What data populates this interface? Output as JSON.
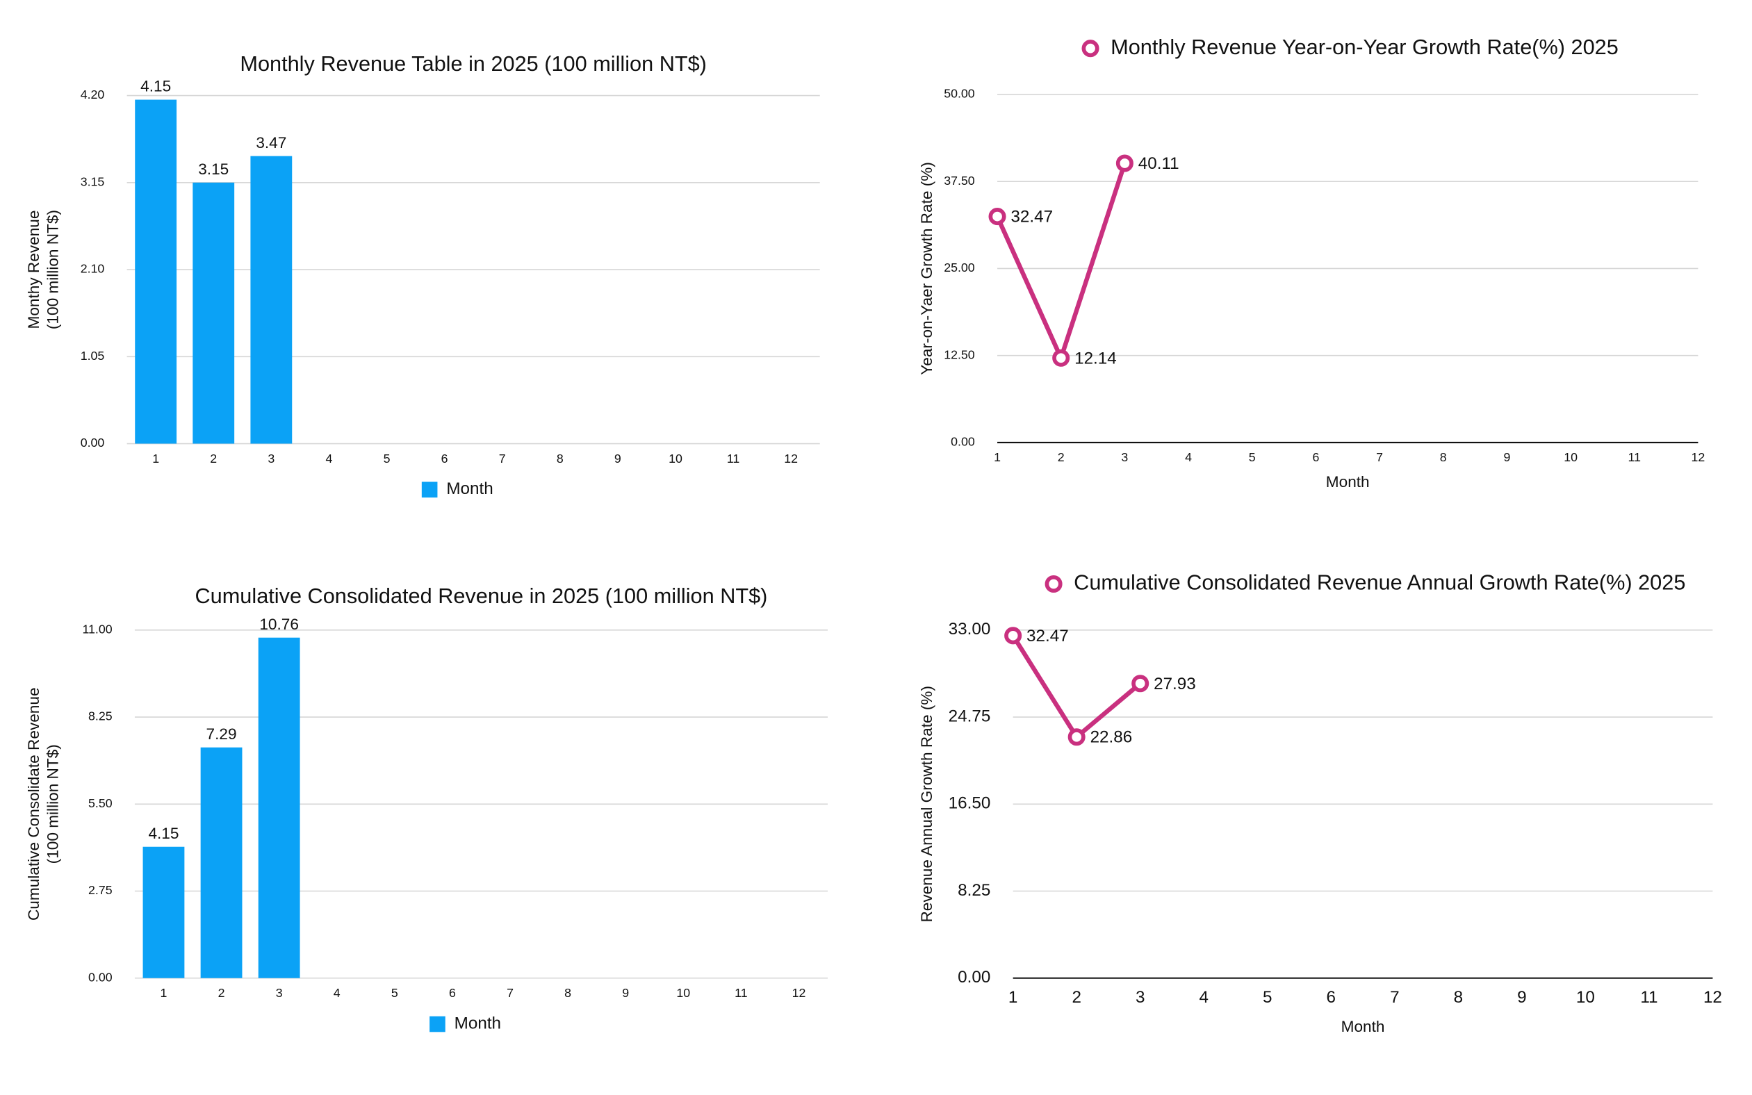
{
  "chart_data": [
    {
      "type": "bar",
      "title": "Monthly Revenue Table in 2025 (100 million NT$)",
      "ylabel": [
        "Monthy Revenue",
        "(100 million NT$)"
      ],
      "categories": [
        1,
        2,
        3,
        4,
        5,
        6,
        7,
        8,
        9,
        10,
        11,
        12
      ],
      "series": [
        {
          "name": "Month",
          "color": "#0ba2f6",
          "values": [
            4.15,
            3.15,
            3.47,
            null,
            null,
            null,
            null,
            null,
            null,
            null,
            null,
            null
          ]
        }
      ],
      "ylim": [
        0,
        4.2
      ],
      "yticks": [
        {
          "value": 0,
          "label": "0.00"
        },
        {
          "value": 1.05,
          "label": "1.05"
        },
        {
          "value": 2.1,
          "label": "2.10"
        },
        {
          "value": 3.15,
          "label": "3.15"
        },
        {
          "value": 4.2,
          "label": "4.20"
        }
      ],
      "grid": true,
      "legend": "bottom"
    },
    {
      "type": "line",
      "xlabel": "Month",
      "ylabel": "Year-on-Yaer Growth Rate (%)",
      "x": [
        1,
        2,
        3,
        4,
        5,
        6,
        7,
        8,
        9,
        10,
        11,
        12
      ],
      "xlim": [
        1,
        12
      ],
      "xticks": [
        1,
        2,
        3,
        4,
        5,
        6,
        7,
        8,
        9,
        10,
        11,
        12
      ],
      "series": [
        {
          "name": "Monthly Revenue Year-on-Year Growth Rate(%) 2025",
          "color": "#c9307f",
          "values": [
            32.47,
            12.14,
            40.11,
            null,
            null,
            null,
            null,
            null,
            null,
            null,
            null,
            null
          ]
        }
      ],
      "ylim": [
        0,
        50
      ],
      "yticks": [
        {
          "value": 0,
          "label": "0.00"
        },
        {
          "value": 12.5,
          "label": "12.50"
        },
        {
          "value": 25,
          "label": "25.00"
        },
        {
          "value": 37.5,
          "label": "37.50"
        },
        {
          "value": 50,
          "label": "50.00"
        }
      ],
      "grid": true,
      "legend": "top"
    },
    {
      "type": "bar",
      "title": "Cumulative Consolidated Revenue in 2025 (100 million NT$)",
      "ylabel": [
        "Cumulative Consolidate Revenue",
        "(100 million NT$)"
      ],
      "categories": [
        1,
        2,
        3,
        4,
        5,
        6,
        7,
        8,
        9,
        10,
        11,
        12
      ],
      "series": [
        {
          "name": "Month",
          "color": "#0ba2f6",
          "values": [
            4.15,
            7.29,
            10.76,
            null,
            null,
            null,
            null,
            null,
            null,
            null,
            null,
            null
          ]
        }
      ],
      "ylim": [
        0,
        11
      ],
      "yticks": [
        {
          "value": 0,
          "label": "0.00"
        },
        {
          "value": 2.75,
          "label": "2.75"
        },
        {
          "value": 5.5,
          "label": "5.50"
        },
        {
          "value": 8.25,
          "label": "8.25"
        },
        {
          "value": 11,
          "label": "11.00"
        }
      ],
      "grid": true,
      "legend": "bottom"
    },
    {
      "type": "line",
      "xlabel": "Month",
      "ylabel": "Revenue Annual Growth Rate (%)",
      "x": [
        1,
        2,
        3,
        4,
        5,
        6,
        7,
        8,
        9,
        10,
        11,
        12
      ],
      "xlim": [
        1,
        12
      ],
      "xticks": [
        1,
        2,
        3,
        4,
        5,
        6,
        7,
        8,
        9,
        10,
        11,
        12
      ],
      "series": [
        {
          "name": "Cumulative Consolidated Revenue Annual Growth Rate(%) 2025",
          "color": "#c9307f",
          "values": [
            32.47,
            22.86,
            27.93,
            null,
            null,
            null,
            null,
            null,
            null,
            null,
            null,
            null
          ]
        }
      ],
      "ylim": [
        0,
        33
      ],
      "yticks": [
        {
          "value": 0,
          "label": "0.00"
        },
        {
          "value": 8.25,
          "label": "8.25"
        },
        {
          "value": 16.5,
          "label": "16.50"
        },
        {
          "value": 24.75,
          "label": "24.75"
        },
        {
          "value": 33,
          "label": "33.00"
        }
      ],
      "grid": true,
      "legend": "top"
    }
  ]
}
